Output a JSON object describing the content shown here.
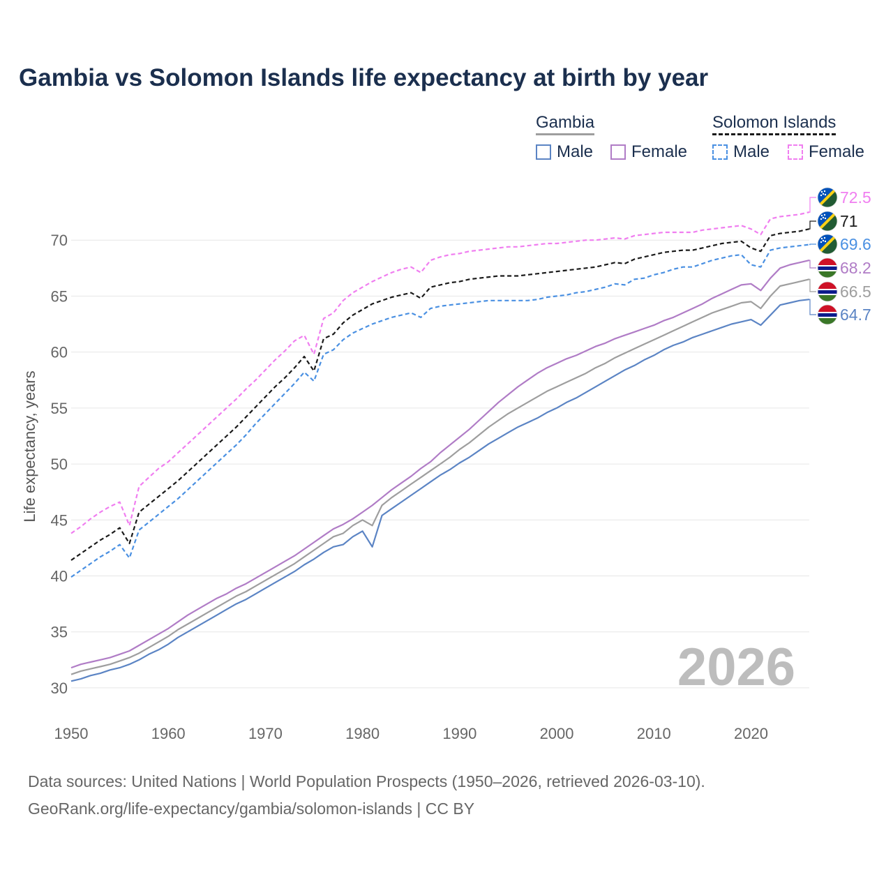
{
  "chart_data": {
    "type": "line",
    "title": "Gambia vs Solomon Islands life expectancy at birth by year",
    "ylabel": "Life expectancy, years",
    "xlabel": "",
    "xlim": [
      1950,
      2026
    ],
    "ylim": [
      28.5,
      74.5
    ],
    "x_ticks": [
      "1950",
      "1960",
      "1970",
      "1980",
      "1990",
      "2000",
      "2010",
      "2020"
    ],
    "y_ticks": [
      "30",
      "35",
      "40",
      "45",
      "50",
      "55",
      "60",
      "65",
      "70"
    ],
    "year_watermark": "2026",
    "x": [
      1950,
      1951,
      1952,
      1953,
      1954,
      1955,
      1956,
      1957,
      1958,
      1959,
      1960,
      1961,
      1962,
      1963,
      1964,
      1965,
      1966,
      1967,
      1968,
      1969,
      1970,
      1971,
      1972,
      1973,
      1974,
      1975,
      1976,
      1977,
      1978,
      1979,
      1980,
      1981,
      1982,
      1983,
      1984,
      1985,
      1986,
      1987,
      1988,
      1989,
      1990,
      1991,
      1992,
      1993,
      1994,
      1995,
      1996,
      1997,
      1998,
      1999,
      2000,
      2001,
      2002,
      2003,
      2004,
      2005,
      2006,
      2007,
      2008,
      2009,
      2010,
      2011,
      2012,
      2013,
      2014,
      2015,
      2016,
      2017,
      2018,
      2019,
      2020,
      2021,
      2022,
      2023,
      2024,
      2025,
      2026
    ],
    "series": [
      {
        "name": "Solomon Islands Female",
        "country": "Solomon Islands",
        "sex": "Female",
        "color": "#f07ef0",
        "dashed": true,
        "end_label": "72.5",
        "values": [
          43.8,
          44.4,
          45.1,
          45.7,
          46.2,
          46.6,
          44.5,
          48.0,
          48.8,
          49.6,
          50.2,
          51.0,
          51.8,
          52.6,
          53.4,
          54.2,
          55.0,
          55.8,
          56.7,
          57.5,
          58.4,
          59.3,
          60.1,
          61.0,
          61.5,
          59.8,
          63.0,
          63.5,
          64.6,
          65.3,
          65.8,
          66.3,
          66.7,
          67.1,
          67.4,
          67.6,
          67.1,
          68.2,
          68.5,
          68.7,
          68.8,
          69.0,
          69.1,
          69.2,
          69.3,
          69.4,
          69.4,
          69.5,
          69.6,
          69.7,
          69.7,
          69.8,
          69.9,
          70.0,
          70.0,
          70.1,
          70.2,
          70.1,
          70.4,
          70.5,
          70.6,
          70.7,
          70.7,
          70.7,
          70.7,
          70.9,
          71.0,
          71.1,
          71.2,
          71.3,
          71.0,
          70.5,
          71.9,
          72.1,
          72.2,
          72.3,
          72.5
        ]
      },
      {
        "name": "Solomon Islands",
        "country": "Solomon Islands",
        "sex": "Both",
        "color": "#1a1a1a",
        "dashed": true,
        "end_label": "71",
        "values": [
          41.4,
          42.0,
          42.6,
          43.2,
          43.7,
          44.3,
          42.9,
          45.7,
          46.4,
          47.1,
          47.8,
          48.5,
          49.3,
          50.1,
          50.9,
          51.7,
          52.5,
          53.3,
          54.2,
          55.1,
          56.0,
          56.9,
          57.7,
          58.6,
          59.6,
          58.3,
          61.2,
          61.6,
          62.6,
          63.3,
          63.8,
          64.3,
          64.6,
          64.9,
          65.1,
          65.3,
          64.8,
          65.8,
          66.0,
          66.2,
          66.3,
          66.5,
          66.6,
          66.7,
          66.8,
          66.8,
          66.8,
          66.9,
          67.0,
          67.1,
          67.2,
          67.3,
          67.4,
          67.5,
          67.6,
          67.8,
          68.0,
          67.9,
          68.3,
          68.5,
          68.7,
          68.9,
          69.0,
          69.1,
          69.1,
          69.3,
          69.5,
          69.7,
          69.8,
          69.9,
          69.3,
          69.0,
          70.4,
          70.6,
          70.7,
          70.8,
          71.0
        ]
      },
      {
        "name": "Solomon Islands Male",
        "country": "Solomon Islands",
        "sex": "Male",
        "color": "#4a90e2",
        "dashed": true,
        "end_label": "69.6",
        "values": [
          39.9,
          40.5,
          41.1,
          41.7,
          42.2,
          42.8,
          41.6,
          44.1,
          44.8,
          45.5,
          46.2,
          46.9,
          47.7,
          48.5,
          49.3,
          50.1,
          50.9,
          51.7,
          52.6,
          53.6,
          54.5,
          55.4,
          56.3,
          57.2,
          58.2,
          57.4,
          59.8,
          60.2,
          61.1,
          61.7,
          62.1,
          62.5,
          62.8,
          63.1,
          63.3,
          63.5,
          63.1,
          63.9,
          64.1,
          64.2,
          64.3,
          64.4,
          64.5,
          64.6,
          64.6,
          64.6,
          64.6,
          64.6,
          64.7,
          64.9,
          65.0,
          65.1,
          65.3,
          65.4,
          65.6,
          65.8,
          66.1,
          66.0,
          66.5,
          66.6,
          66.9,
          67.1,
          67.4,
          67.6,
          67.6,
          67.9,
          68.2,
          68.4,
          68.6,
          68.7,
          67.8,
          67.6,
          69.1,
          69.3,
          69.4,
          69.5,
          69.6
        ]
      },
      {
        "name": "Gambia Female",
        "country": "Gambia",
        "sex": "Female",
        "color": "#b07cc6",
        "dashed": false,
        "end_label": "68.2",
        "values": [
          31.8,
          32.1,
          32.3,
          32.5,
          32.7,
          33.0,
          33.3,
          33.8,
          34.3,
          34.8,
          35.3,
          35.9,
          36.5,
          37.0,
          37.5,
          38.0,
          38.4,
          38.9,
          39.3,
          39.8,
          40.3,
          40.8,
          41.3,
          41.8,
          42.4,
          43.0,
          43.6,
          44.2,
          44.6,
          45.1,
          45.7,
          46.3,
          47.0,
          47.7,
          48.3,
          48.9,
          49.6,
          50.2,
          51.0,
          51.7,
          52.4,
          53.1,
          53.9,
          54.7,
          55.5,
          56.2,
          56.9,
          57.5,
          58.1,
          58.6,
          59.0,
          59.4,
          59.7,
          60.1,
          60.5,
          60.8,
          61.2,
          61.5,
          61.8,
          62.1,
          62.4,
          62.8,
          63.1,
          63.5,
          63.9,
          64.3,
          64.8,
          65.2,
          65.6,
          66.0,
          66.1,
          65.5,
          66.6,
          67.5,
          67.8,
          68.0,
          68.2
        ]
      },
      {
        "name": "Gambia",
        "country": "Gambia",
        "sex": "Both",
        "color": "#9e9e9e",
        "dashed": false,
        "end_label": "66.5",
        "values": [
          31.2,
          31.5,
          31.7,
          31.9,
          32.1,
          32.4,
          32.7,
          33.1,
          33.6,
          34.1,
          34.6,
          35.2,
          35.7,
          36.2,
          36.7,
          37.2,
          37.7,
          38.2,
          38.6,
          39.1,
          39.6,
          40.1,
          40.6,
          41.1,
          41.7,
          42.3,
          42.9,
          43.5,
          43.8,
          44.5,
          45.0,
          44.5,
          46.3,
          47.0,
          47.6,
          48.2,
          48.8,
          49.4,
          50.0,
          50.6,
          51.3,
          51.9,
          52.6,
          53.3,
          53.9,
          54.5,
          55.0,
          55.5,
          56.0,
          56.5,
          56.9,
          57.3,
          57.7,
          58.1,
          58.6,
          59.0,
          59.5,
          59.9,
          60.3,
          60.7,
          61.1,
          61.5,
          61.9,
          62.3,
          62.7,
          63.1,
          63.5,
          63.8,
          64.1,
          64.4,
          64.5,
          63.9,
          65.0,
          65.9,
          66.1,
          66.3,
          66.5
        ]
      },
      {
        "name": "Gambia Male",
        "country": "Gambia",
        "sex": "Male",
        "color": "#5b84c4",
        "dashed": false,
        "end_label": "64.7",
        "values": [
          30.6,
          30.8,
          31.1,
          31.3,
          31.6,
          31.8,
          32.1,
          32.5,
          33.0,
          33.4,
          33.9,
          34.5,
          35.0,
          35.5,
          36.0,
          36.5,
          37.0,
          37.5,
          37.9,
          38.4,
          38.9,
          39.4,
          39.9,
          40.4,
          41.0,
          41.5,
          42.1,
          42.6,
          42.8,
          43.5,
          44.0,
          42.6,
          45.4,
          46.0,
          46.6,
          47.2,
          47.8,
          48.4,
          49.0,
          49.5,
          50.1,
          50.6,
          51.2,
          51.8,
          52.3,
          52.8,
          53.3,
          53.7,
          54.1,
          54.6,
          55.0,
          55.5,
          55.9,
          56.4,
          56.9,
          57.4,
          57.9,
          58.4,
          58.8,
          59.3,
          59.7,
          60.2,
          60.6,
          60.9,
          61.3,
          61.6,
          61.9,
          62.2,
          62.5,
          62.7,
          62.9,
          62.4,
          63.3,
          64.2,
          64.4,
          64.6,
          64.7
        ]
      }
    ]
  },
  "legend": {
    "gambia": {
      "label": "Gambia",
      "male": "Male",
      "female": "Female"
    },
    "solomon": {
      "label": "Solomon Islands",
      "male": "Male",
      "female": "Female"
    }
  },
  "source": {
    "line1": "Data sources: United Nations | World Population Prospects (1950–2026, retrieved 2026-03-10).",
    "line2": "GeoRank.org/life-expectancy/gambia/solomon-islands | CC BY"
  },
  "flag_icons": {
    "gambia": "gambia-flag-icon",
    "solomon": "solomon-islands-flag-icon"
  }
}
